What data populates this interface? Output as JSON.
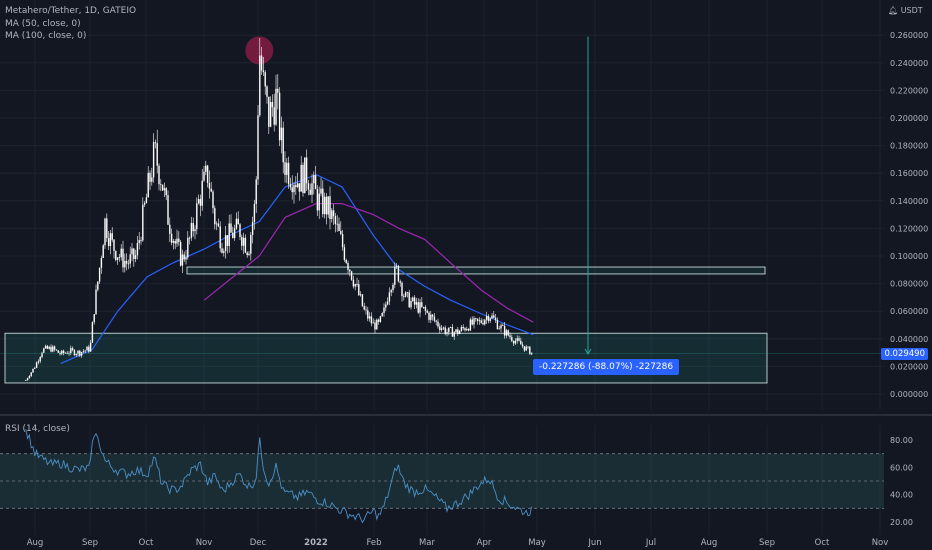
{
  "header": {
    "symbol_line": "Metahero/Tether, 1D, GATEIO",
    "ma50_label": "MA (50, close, 0)",
    "ma100_label": "MA (100, close, 0)",
    "currency": "USDT",
    "rsi_label": "RSI (14, close)"
  },
  "last_price_label": "0.029490",
  "measure_label": "-0.227286 (-88.07%) -227286",
  "colors": {
    "background": "#131722",
    "grid": "#1e222d",
    "up": "#ffffff",
    "down": "#ffffff",
    "ma50": "#2962ff",
    "ma100": "#9c27b0",
    "zone_fill": "#26a69a",
    "rsi_line": "#4a90c8",
    "rsi_band": "#2f6e6a",
    "measure": "#26a69a",
    "highlight": "#e91e63",
    "accent": "#2962ff"
  },
  "chart_data": [
    {
      "type": "candlestick",
      "title": "Metahero/Tether, 1D, GATEIO",
      "x_ticks": [
        "Aug",
        "Sep",
        "Oct",
        "Nov",
        "Dec",
        "2022",
        "Feb",
        "Mar",
        "Apr",
        "May",
        "Jun",
        "Jul",
        "Aug",
        "Sep",
        "Oct",
        "Nov"
      ],
      "y_ticks": [
        "0.260000",
        "0.240000",
        "0.220000",
        "0.200000",
        "0.180000",
        "0.160000",
        "0.140000",
        "0.120000",
        "0.100000",
        "0.080000",
        "0.060000",
        "0.040000",
        "0.020000",
        "0.000000"
      ],
      "ylim": [
        0,
        0.27
      ],
      "last_price": 0.02949,
      "series": [
        {
          "name": "Price (close, approx.)",
          "x": [
            "2021-07-27",
            "2021-08-01",
            "2021-08-05",
            "2021-08-10",
            "2021-08-15",
            "2021-08-20",
            "2021-08-25",
            "2021-08-31",
            "2021-09-02",
            "2021-09-05",
            "2021-09-08",
            "2021-09-12",
            "2021-09-16",
            "2021-09-20",
            "2021-09-25",
            "2021-10-01",
            "2021-10-05",
            "2021-10-09",
            "2021-10-12",
            "2021-10-16",
            "2021-10-20",
            "2021-10-25",
            "2021-10-30",
            "2021-11-03",
            "2021-11-07",
            "2021-11-11",
            "2021-11-15",
            "2021-11-20",
            "2021-11-25",
            "2021-11-29",
            "2021-12-01",
            "2021-12-03",
            "2021-12-06",
            "2021-12-10",
            "2021-12-14",
            "2021-12-18",
            "2021-12-22",
            "2021-12-27",
            "2022-01-02",
            "2022-01-07",
            "2022-01-12",
            "2022-01-17",
            "2022-01-22",
            "2022-01-27",
            "2022-02-01",
            "2022-02-04",
            "2022-02-07",
            "2022-02-10",
            "2022-02-14",
            "2022-02-18",
            "2022-02-23",
            "2022-03-01",
            "2022-03-07",
            "2022-03-13",
            "2022-03-19",
            "2022-03-25",
            "2022-03-31",
            "2022-04-05",
            "2022-04-10",
            "2022-04-15",
            "2022-04-20",
            "2022-04-25",
            "2022-04-29"
          ],
          "values": [
            0.01,
            0.02,
            0.032,
            0.033,
            0.029,
            0.031,
            0.03,
            0.033,
            0.06,
            0.09,
            0.125,
            0.108,
            0.1,
            0.095,
            0.1,
            0.145,
            0.175,
            0.155,
            0.13,
            0.11,
            0.097,
            0.115,
            0.145,
            0.16,
            0.125,
            0.11,
            0.115,
            0.12,
            0.105,
            0.14,
            0.25,
            0.225,
            0.2,
            0.215,
            0.17,
            0.16,
            0.155,
            0.16,
            0.14,
            0.135,
            0.12,
            0.1,
            0.08,
            0.06,
            0.05,
            0.05,
            0.06,
            0.08,
            0.09,
            0.07,
            0.065,
            0.06,
            0.052,
            0.045,
            0.045,
            0.05,
            0.052,
            0.058,
            0.05,
            0.043,
            0.038,
            0.033,
            0.029
          ]
        },
        {
          "name": "MA (50, close, 0)",
          "x": [
            "2021-08-15",
            "2021-09-01",
            "2021-09-15",
            "2021-10-01",
            "2021-10-15",
            "2021-11-01",
            "2021-11-15",
            "2021-12-01",
            "2021-12-15",
            "2022-01-01",
            "2022-01-15",
            "2022-02-01",
            "2022-02-15",
            "2022-03-01",
            "2022-03-15",
            "2022-04-01",
            "2022-04-15",
            "2022-04-29"
          ],
          "values": [
            0.022,
            0.032,
            0.06,
            0.085,
            0.095,
            0.105,
            0.115,
            0.125,
            0.15,
            0.159,
            0.15,
            0.115,
            0.09,
            0.078,
            0.068,
            0.058,
            0.05,
            0.043
          ]
        },
        {
          "name": "MA (100, close, 0)",
          "x": [
            "2021-11-01",
            "2021-11-15",
            "2021-12-01",
            "2021-12-15",
            "2022-01-01",
            "2022-01-15",
            "2022-02-01",
            "2022-02-15",
            "2022-03-01",
            "2022-03-15",
            "2022-04-01",
            "2022-04-15",
            "2022-04-29"
          ],
          "values": [
            0.068,
            0.083,
            0.1,
            0.128,
            0.138,
            0.138,
            0.13,
            0.12,
            0.112,
            0.095,
            0.075,
            0.062,
            0.052
          ]
        }
      ],
      "annotations": {
        "resistance_zone": [
          0.087,
          0.092
        ],
        "support_zone": [
          0.008,
          0.044
        ],
        "measure_from": 0.259,
        "measure_to": 0.029,
        "measure_label": "-0.227286 (-88.07%) -227286"
      }
    },
    {
      "type": "line",
      "title": "RSI (14, close)",
      "y_ticks": [
        "80.00",
        "60.00",
        "40.00",
        "20.00"
      ],
      "ylim": [
        17,
        87
      ],
      "band": [
        30,
        70
      ],
      "series": [
        {
          "name": "RSI (14, close)",
          "x": [
            "2021-07-27",
            "2021-08-01",
            "2021-08-05",
            "2021-08-10",
            "2021-08-15",
            "2021-08-20",
            "2021-08-25",
            "2021-08-31",
            "2021-09-02",
            "2021-09-05",
            "2021-09-08",
            "2021-09-12",
            "2021-09-16",
            "2021-09-20",
            "2021-09-25",
            "2021-10-01",
            "2021-10-05",
            "2021-10-09",
            "2021-10-12",
            "2021-10-16",
            "2021-10-20",
            "2021-10-25",
            "2021-10-30",
            "2021-11-03",
            "2021-11-07",
            "2021-11-11",
            "2021-11-15",
            "2021-11-20",
            "2021-11-25",
            "2021-11-29",
            "2021-12-01",
            "2021-12-03",
            "2021-12-06",
            "2021-12-10",
            "2021-12-14",
            "2021-12-18",
            "2021-12-22",
            "2021-12-27",
            "2022-01-02",
            "2022-01-07",
            "2022-01-12",
            "2022-01-17",
            "2022-01-22",
            "2022-01-27",
            "2022-02-01",
            "2022-02-04",
            "2022-02-07",
            "2022-02-10",
            "2022-02-14",
            "2022-02-18",
            "2022-02-23",
            "2022-03-01",
            "2022-03-07",
            "2022-03-13",
            "2022-03-19",
            "2022-03-25",
            "2022-03-31",
            "2022-04-05",
            "2022-04-10",
            "2022-04-15",
            "2022-04-20",
            "2022-04-25",
            "2022-04-29"
          ],
          "values": [
            88,
            70,
            66,
            62,
            63,
            60,
            58,
            60,
            86,
            78,
            65,
            60,
            57,
            55,
            58,
            55,
            67,
            48,
            45,
            43,
            47,
            58,
            62,
            48,
            54,
            42,
            48,
            55,
            46,
            50,
            81,
            62,
            48,
            61,
            42,
            40,
            38,
            42,
            36,
            34,
            30,
            27,
            24,
            22,
            28,
            24,
            32,
            45,
            62,
            48,
            42,
            44,
            38,
            30,
            34,
            40,
            48,
            52,
            38,
            34,
            30,
            27,
            29
          ]
        }
      ]
    }
  ]
}
